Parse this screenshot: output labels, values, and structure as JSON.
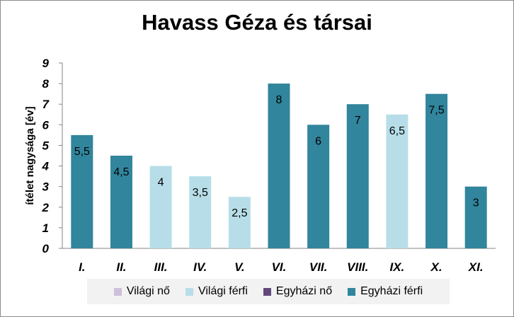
{
  "chart_data": {
    "type": "bar",
    "title": "Havass Géza és társai",
    "ylabel": "ítélet nagysága [év]",
    "xlabel": "",
    "ylim": [
      0,
      9
    ],
    "yticks": [
      0,
      1,
      2,
      3,
      4,
      5,
      6,
      7,
      8,
      9
    ],
    "grid": false,
    "legend_position": "bottom",
    "categories": [
      "I.",
      "II.",
      "III.",
      "IV.",
      "V.",
      "VI.",
      "VII.",
      "VIII.",
      "IX.",
      "X.",
      "XI."
    ],
    "values": [
      5.5,
      4.5,
      4,
      3.5,
      2.5,
      8,
      6,
      7,
      6.5,
      7.5,
      3
    ],
    "value_labels": [
      "5,5",
      "4,5",
      "4",
      "3,5",
      "2,5",
      "8",
      "6",
      "7",
      "6,5",
      "7,5",
      "3"
    ],
    "bar_series": [
      "Egyházi férfi",
      "Egyházi férfi",
      "Világi férfi",
      "Világi férfi",
      "Világi férfi",
      "Egyházi férfi",
      "Egyházi férfi",
      "Egyházi férfi",
      "Világi férfi",
      "Egyházi férfi",
      "Egyházi férfi"
    ],
    "series": [
      {
        "name": "Világi nő",
        "color": "#ccc0da"
      },
      {
        "name": "Világi férfi",
        "color": "#b7dee8"
      },
      {
        "name": "Egyházi nő",
        "color": "#60497a"
      },
      {
        "name": "Egyházi férfi",
        "color": "#31859c"
      }
    ]
  }
}
